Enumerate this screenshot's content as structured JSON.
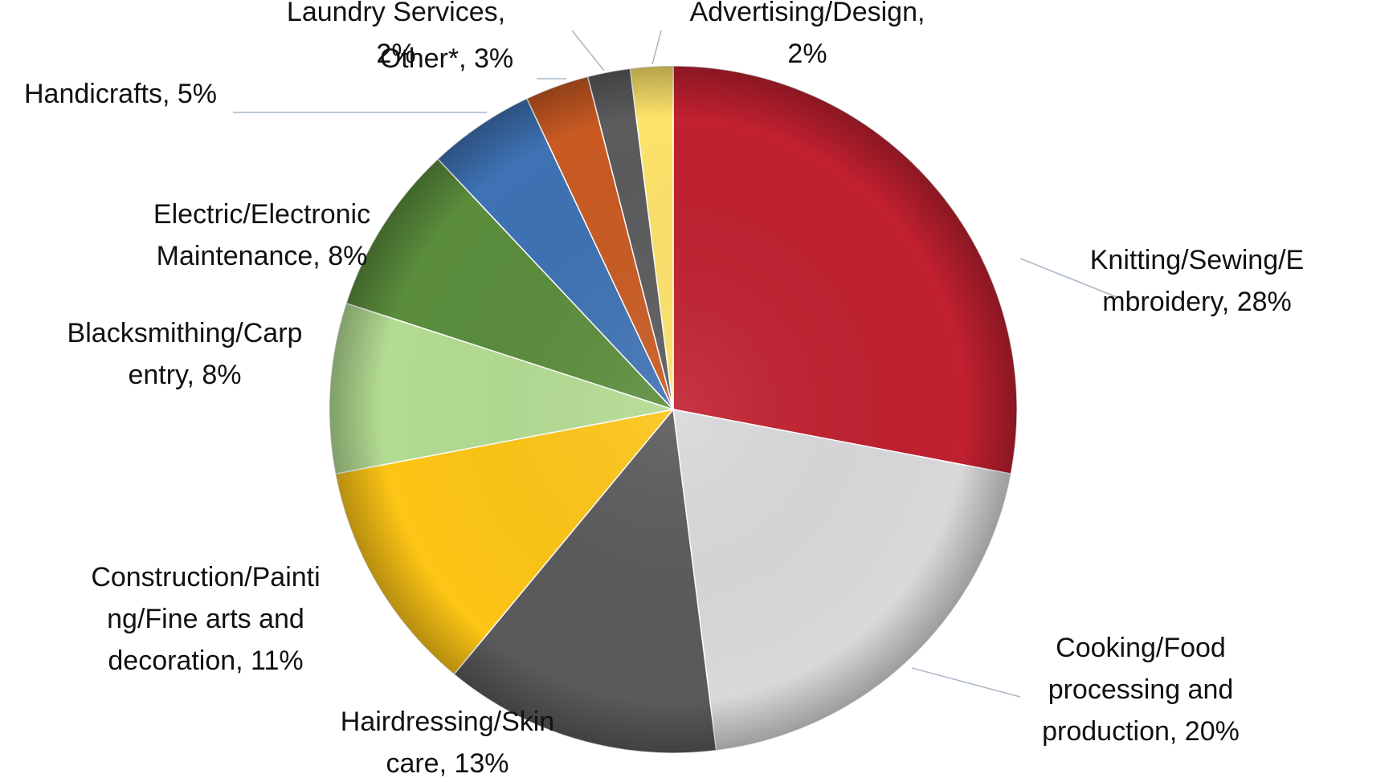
{
  "chart_data": {
    "type": "pie",
    "title": "",
    "slices": [
      {
        "label": "Knitting/Sewing/Embroidery",
        "value": 28,
        "text_lines": [
          "Knitting/Sewing/E",
          "mbroidery, 28%"
        ],
        "color": "#c0202f"
      },
      {
        "label": "Cooking/Food processing and production",
        "value": 20,
        "text_lines": [
          "Cooking/Food",
          "processing and",
          "production, 20%"
        ],
        "color": "#d9d9db"
      },
      {
        "label": "Hairdressing/Skin care",
        "value": 13,
        "text_lines": [
          "Hairdressing/Skin",
          "care, 13%"
        ],
        "color": "#5a5a5c"
      },
      {
        "label": "Construction/Painting/Fine arts and decoration",
        "value": 11,
        "text_lines": [
          "Construction/Painti",
          "ng/Fine arts and",
          "decoration, 11%"
        ],
        "color": "#fdc515"
      },
      {
        "label": "Blacksmithing/Carpentry",
        "value": 8,
        "text_lines": [
          "Blacksmithing/Carp",
          "entry, 8%"
        ],
        "color": "#b3dc92"
      },
      {
        "label": "Electric/Electronic Maintenance",
        "value": 8,
        "text_lines": [
          "Electric/Electronic",
          "Maintenance, 8%"
        ],
        "color": "#5a8d3c"
      },
      {
        "label": "Handicrafts",
        "value": 5,
        "text_lines": [
          "Handicrafts, 5%"
        ],
        "color": "#3e72b4"
      },
      {
        "label": "Other*",
        "value": 3,
        "text_lines": [
          "Other*, 3%"
        ],
        "color": "#c95a22"
      },
      {
        "label": "Laundry Services",
        "value": 2,
        "text_lines": [
          "Laundry Services,",
          "2%"
        ],
        "color": "#5c5c5e"
      },
      {
        "label": "Advertising/Design",
        "value": 2,
        "text_lines": [
          "Advertising/Design,",
          "2%"
        ],
        "color": "#fde36a"
      }
    ]
  }
}
